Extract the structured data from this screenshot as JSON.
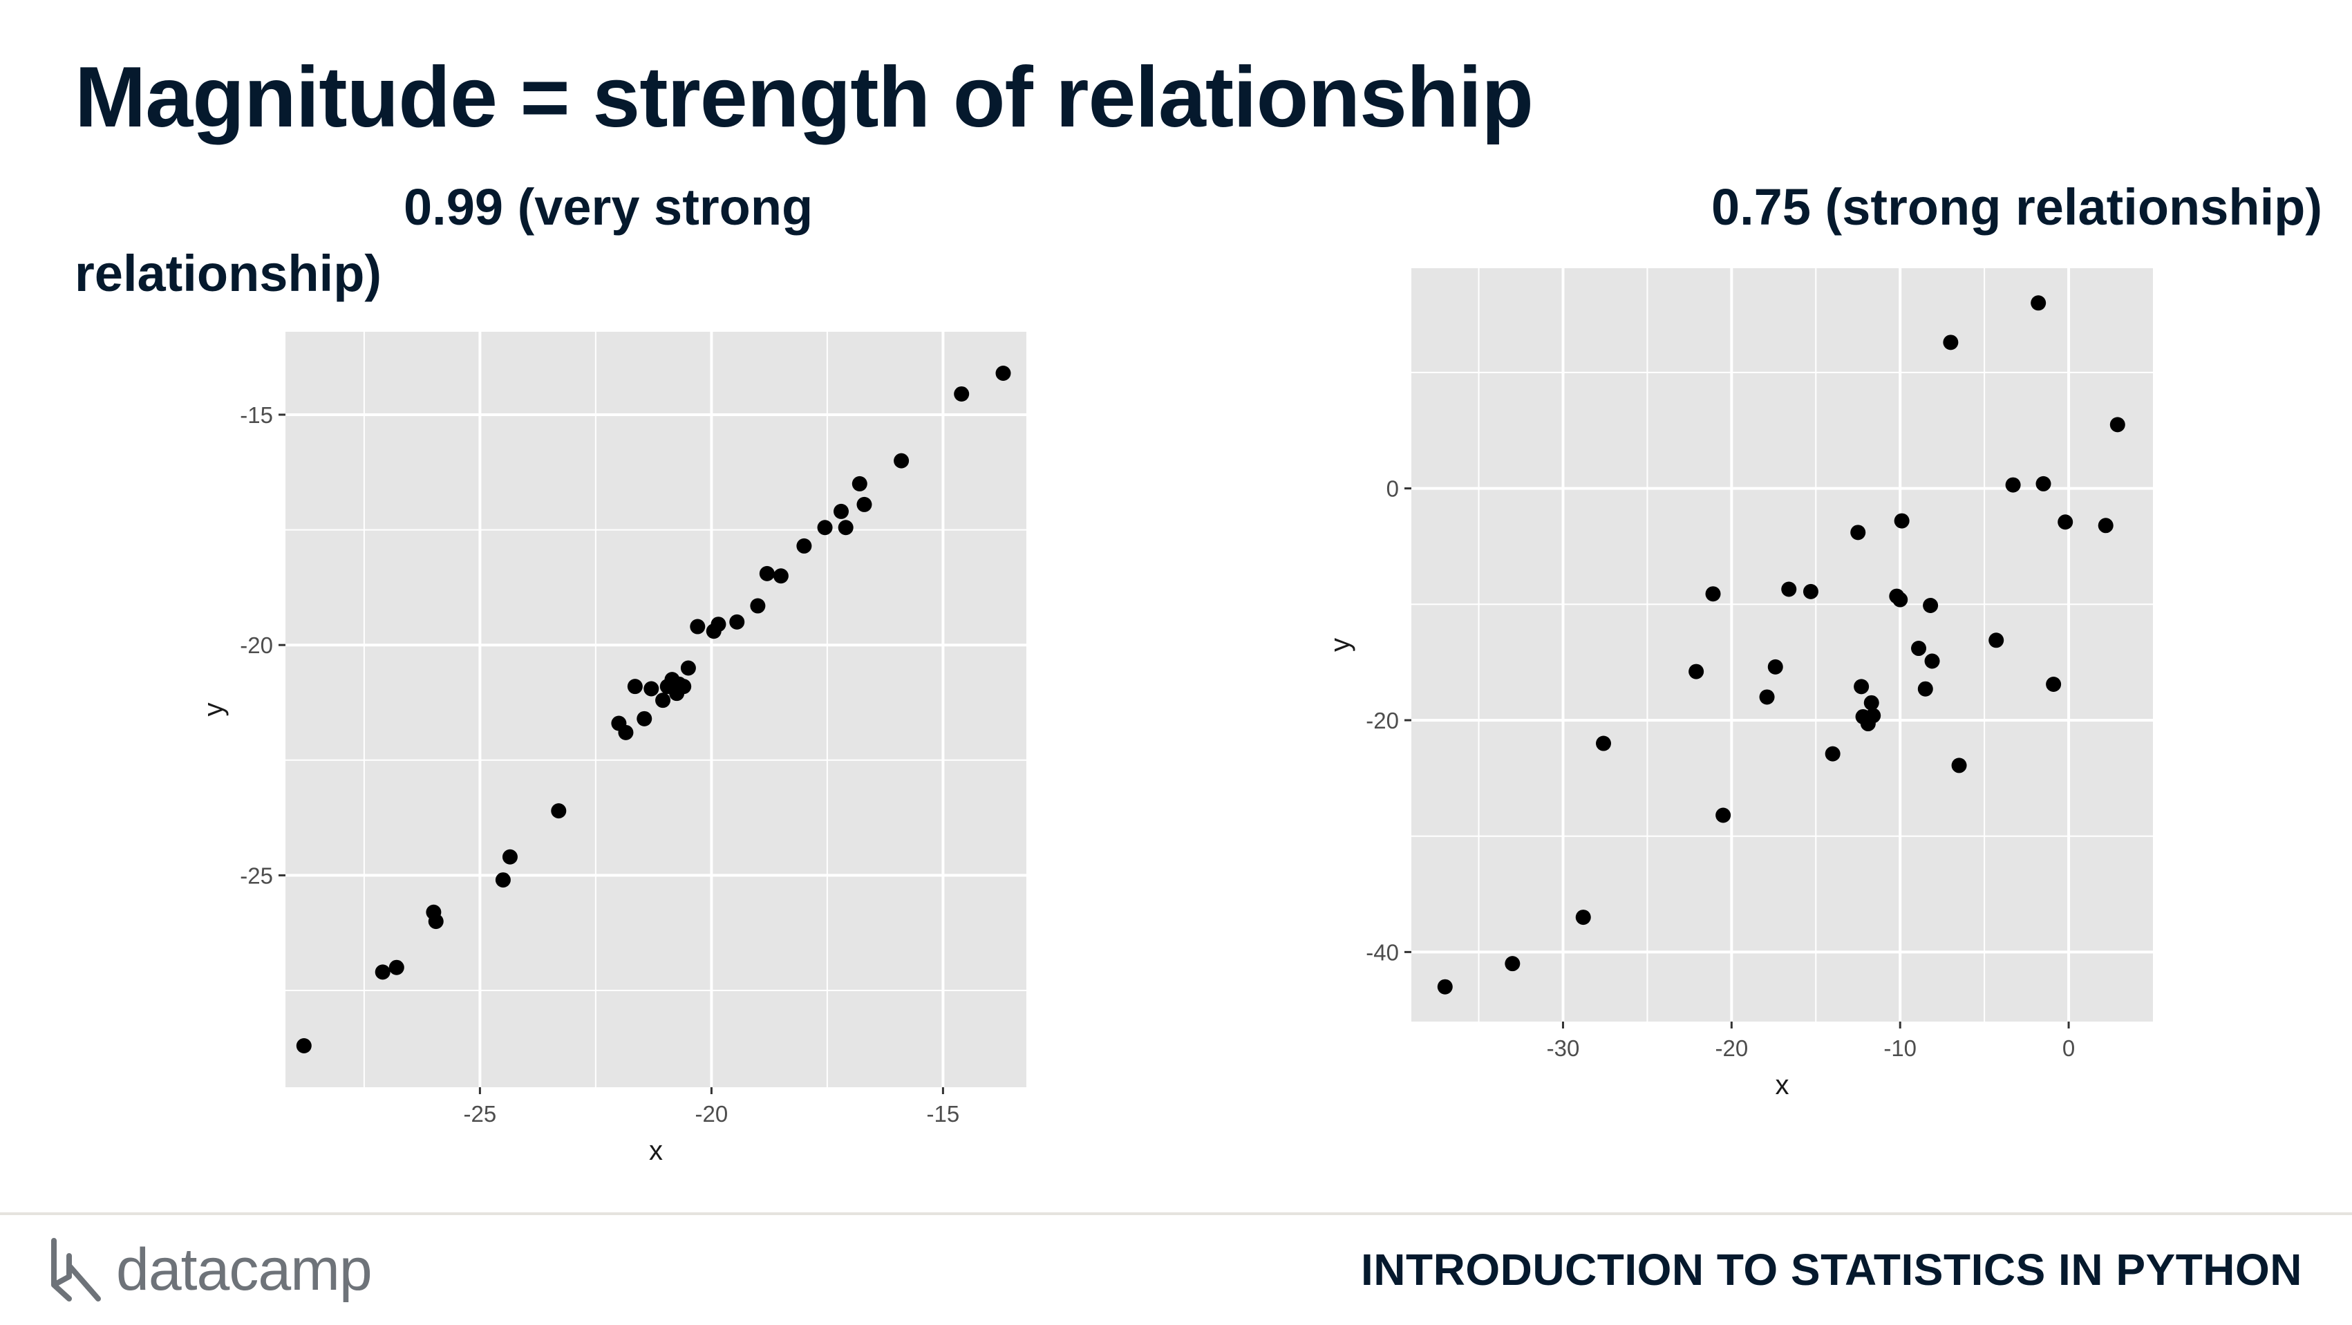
{
  "slide": {
    "title": "Magnitude = strength of relationship",
    "left_panel_title": "0.99 (very strong relationship)",
    "right_panel_title": "0.75 (strong relationship)"
  },
  "footer": {
    "logo_text": "datacamp",
    "course": "INTRODUCTION TO STATISTICS IN PYTHON"
  },
  "colors": {
    "panel_bg": "#e5e5e5",
    "grid": "#ffffff",
    "point": "#000000",
    "text": "#05192d"
  },
  "chart_data": [
    {
      "type": "scatter",
      "title": "0.99 (very strong relationship)",
      "xlabel": "x",
      "ylabel": "y",
      "xlim": [
        -29.2,
        -13.2
      ],
      "ylim": [
        -29.6,
        -13.2
      ],
      "xticks": [
        -25,
        -20,
        -15
      ],
      "xtick_labels": [
        "-25",
        "-20",
        "-15"
      ],
      "yticks": [
        -15,
        -20,
        -25
      ],
      "ytick_labels": [
        "-15",
        "-20",
        "-25"
      ],
      "x": [
        -28.8,
        -27.1,
        -26.8,
        -26.0,
        -25.95,
        -24.5,
        -24.35,
        -23.3,
        -22.0,
        -21.85,
        -21.65,
        -21.45,
        -21.3,
        -21.05,
        -20.95,
        -20.85,
        -20.75,
        -20.7,
        -20.6,
        -20.5,
        -20.3,
        -19.95,
        -19.85,
        -19.45,
        -19.0,
        -18.8,
        -18.5,
        -18.0,
        -17.55,
        -17.2,
        -17.1,
        -16.8,
        -16.7,
        -15.9,
        -14.6,
        -13.7
      ],
      "y": [
        -28.7,
        -27.1,
        -27.0,
        -25.8,
        -26.0,
        -25.1,
        -24.6,
        -23.6,
        -21.7,
        -21.9,
        -20.9,
        -21.6,
        -20.95,
        -21.2,
        -20.9,
        -20.75,
        -21.05,
        -20.85,
        -20.9,
        -20.5,
        -19.6,
        -19.7,
        -19.55,
        -19.5,
        -19.15,
        -18.45,
        -18.5,
        -17.85,
        -17.45,
        -17.1,
        -17.45,
        -16.5,
        -16.95,
        -16.0,
        -14.55,
        -14.1
      ]
    },
    {
      "type": "scatter",
      "title": "0.75 (strong relationship)",
      "xlabel": "x",
      "ylabel": "y",
      "xlim": [
        -39.0,
        5.0
      ],
      "ylim": [
        -46.0,
        19.0
      ],
      "xticks": [
        -30,
        -20,
        -10,
        0
      ],
      "xtick_labels": [
        "-30",
        "-20",
        "-10",
        "0"
      ],
      "yticks": [
        0,
        -20,
        -40
      ],
      "ytick_labels": [
        "0",
        "-20",
        "-40"
      ],
      "x": [
        -37.0,
        -33.0,
        -28.8,
        -27.6,
        -22.1,
        -21.1,
        -20.5,
        -17.9,
        -17.4,
        -16.6,
        -15.3,
        -14.0,
        -12.5,
        -12.3,
        -12.2,
        -11.9,
        -11.7,
        -11.6,
        -10.2,
        -10.0,
        -9.9,
        -8.9,
        -8.5,
        -8.2,
        -8.1,
        -7.0,
        -6.5,
        -4.3,
        -3.3,
        -1.8,
        -1.5,
        -0.9,
        -0.2,
        2.2,
        2.9
      ],
      "y": [
        -43.0,
        -41.0,
        -37.0,
        -22.0,
        -15.8,
        -9.1,
        -28.2,
        -18.0,
        -15.4,
        -8.7,
        -8.9,
        -22.9,
        -3.8,
        -17.1,
        -19.7,
        -20.3,
        -18.5,
        -19.6,
        -9.3,
        -9.6,
        -2.8,
        -13.8,
        -17.3,
        -10.1,
        -14.9,
        12.6,
        -23.9,
        -13.1,
        0.3,
        16.0,
        0.4,
        -16.9,
        -2.9,
        -3.2,
        5.5
      ]
    }
  ]
}
